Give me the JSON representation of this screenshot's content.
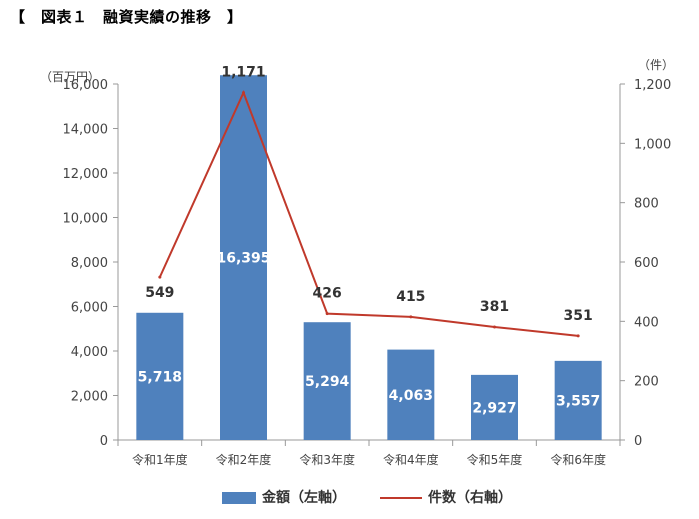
{
  "title": "【　図表１　融資実績の推移　】",
  "chart_data": {
    "type": "bar+line",
    "categories": [
      "令和1年度",
      "令和2年度",
      "令和3年度",
      "令和4年度",
      "令和5年度",
      "令和6年度"
    ],
    "series": [
      {
        "name": "金額（左軸）",
        "type": "bar",
        "axis": "left",
        "color": "#4f81bd",
        "values": [
          5718,
          16395,
          5294,
          4063,
          2927,
          3557
        ],
        "labels": [
          "5,718",
          "16,395",
          "5,294",
          "4,063",
          "2,927",
          "3,557"
        ]
      },
      {
        "name": "件数（右軸）",
        "type": "line",
        "axis": "right",
        "color": "#c0392b",
        "values": [
          549,
          1171,
          426,
          415,
          381,
          351
        ],
        "labels": [
          "549",
          "1,171",
          "426",
          "415",
          "381",
          "351"
        ]
      }
    ],
    "y_left": {
      "unit": "（百万円）",
      "ylim": [
        0,
        16000
      ],
      "ticks": [
        "0",
        "2,000",
        "4,000",
        "6,000",
        "8,000",
        "10,000",
        "12,000",
        "14,000",
        "16,000"
      ]
    },
    "y_right": {
      "unit": "（件）",
      "ylim": [
        0,
        1200
      ],
      "ticks": [
        "0",
        "200",
        "400",
        "600",
        "800",
        "1,000",
        "1,200"
      ]
    },
    "grid": false,
    "legend": "bottom"
  }
}
